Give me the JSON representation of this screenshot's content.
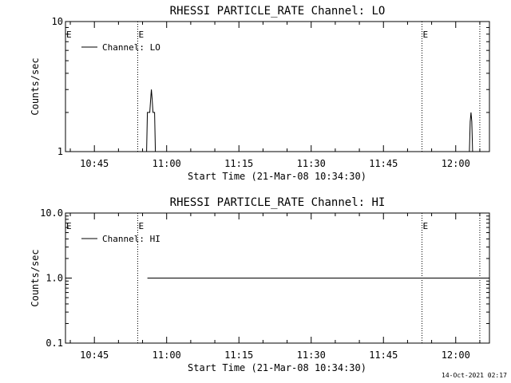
{
  "footer": {
    "timestamp": "14-Oct-2021 02:17"
  },
  "chart_data": [
    {
      "type": "line",
      "title": "RHESSI PARTICLE_RATE Channel: LO",
      "xlabel": "Start Time (21-Mar-08 10:34:30)",
      "ylabel": "Counts/sec",
      "y_scale": "log",
      "ylim": [
        1,
        10
      ],
      "y_ticks": [
        {
          "value": 1,
          "label": "1"
        },
        {
          "value": 10,
          "label": "10"
        }
      ],
      "xlim": [
        "10:39",
        "12:07"
      ],
      "x_ticks": [
        "10:45",
        "11:00",
        "11:15",
        "11:30",
        "11:45",
        "12:00"
      ],
      "grid": false,
      "legend": {
        "position": "top-left",
        "entries": [
          "Channel: LO"
        ]
      },
      "markers": [
        {
          "time": "10:54",
          "label": "E"
        },
        {
          "time": "11:53",
          "label": "E"
        },
        {
          "time": "12:05",
          "label": ""
        }
      ],
      "series": [
        {
          "name": "Channel: LO",
          "color": "#000000",
          "points": [
            [
              "10:55:50",
              1
            ],
            [
              "10:56:00",
              2
            ],
            [
              "10:56:30",
              2
            ],
            [
              "10:56:40",
              2.5
            ],
            [
              "10:56:50",
              3
            ],
            [
              "10:57:00",
              2.5
            ],
            [
              "10:57:10",
              2
            ],
            [
              "10:57:30",
              2
            ],
            [
              "10:57:40",
              1
            ],
            [
              "12:02:50",
              1
            ],
            [
              "12:03:00",
              1.7
            ],
            [
              "12:03:10",
              2
            ],
            [
              "12:03:20",
              1.7
            ],
            [
              "12:03:30",
              1
            ]
          ]
        }
      ]
    },
    {
      "type": "line",
      "title": "RHESSI PARTICLE_RATE Channel: HI",
      "xlabel": "Start Time (21-Mar-08 10:34:30)",
      "ylabel": "Counts/sec",
      "y_scale": "log",
      "ylim": [
        0.1,
        10
      ],
      "y_ticks": [
        {
          "value": 0.1,
          "label": "0.1"
        },
        {
          "value": 1,
          "label": "1.0"
        },
        {
          "value": 10,
          "label": "10.0"
        }
      ],
      "xlim": [
        "10:39",
        "12:07"
      ],
      "x_ticks": [
        "10:45",
        "11:00",
        "11:15",
        "11:30",
        "11:45",
        "12:00"
      ],
      "grid": false,
      "legend": {
        "position": "top-left",
        "entries": [
          "Channel: HI"
        ]
      },
      "markers": [
        {
          "time": "10:54",
          "label": "E"
        },
        {
          "time": "11:53",
          "label": "E"
        },
        {
          "time": "12:05",
          "label": ""
        }
      ],
      "series": [
        {
          "name": "Channel: HI",
          "color": "#000000",
          "points": [
            [
              "10:56:00",
              1
            ],
            [
              "10:57:40",
              1
            ],
            [
              "12:05:40",
              1
            ],
            [
              "12:06:40",
              1
            ]
          ]
        }
      ]
    }
  ]
}
